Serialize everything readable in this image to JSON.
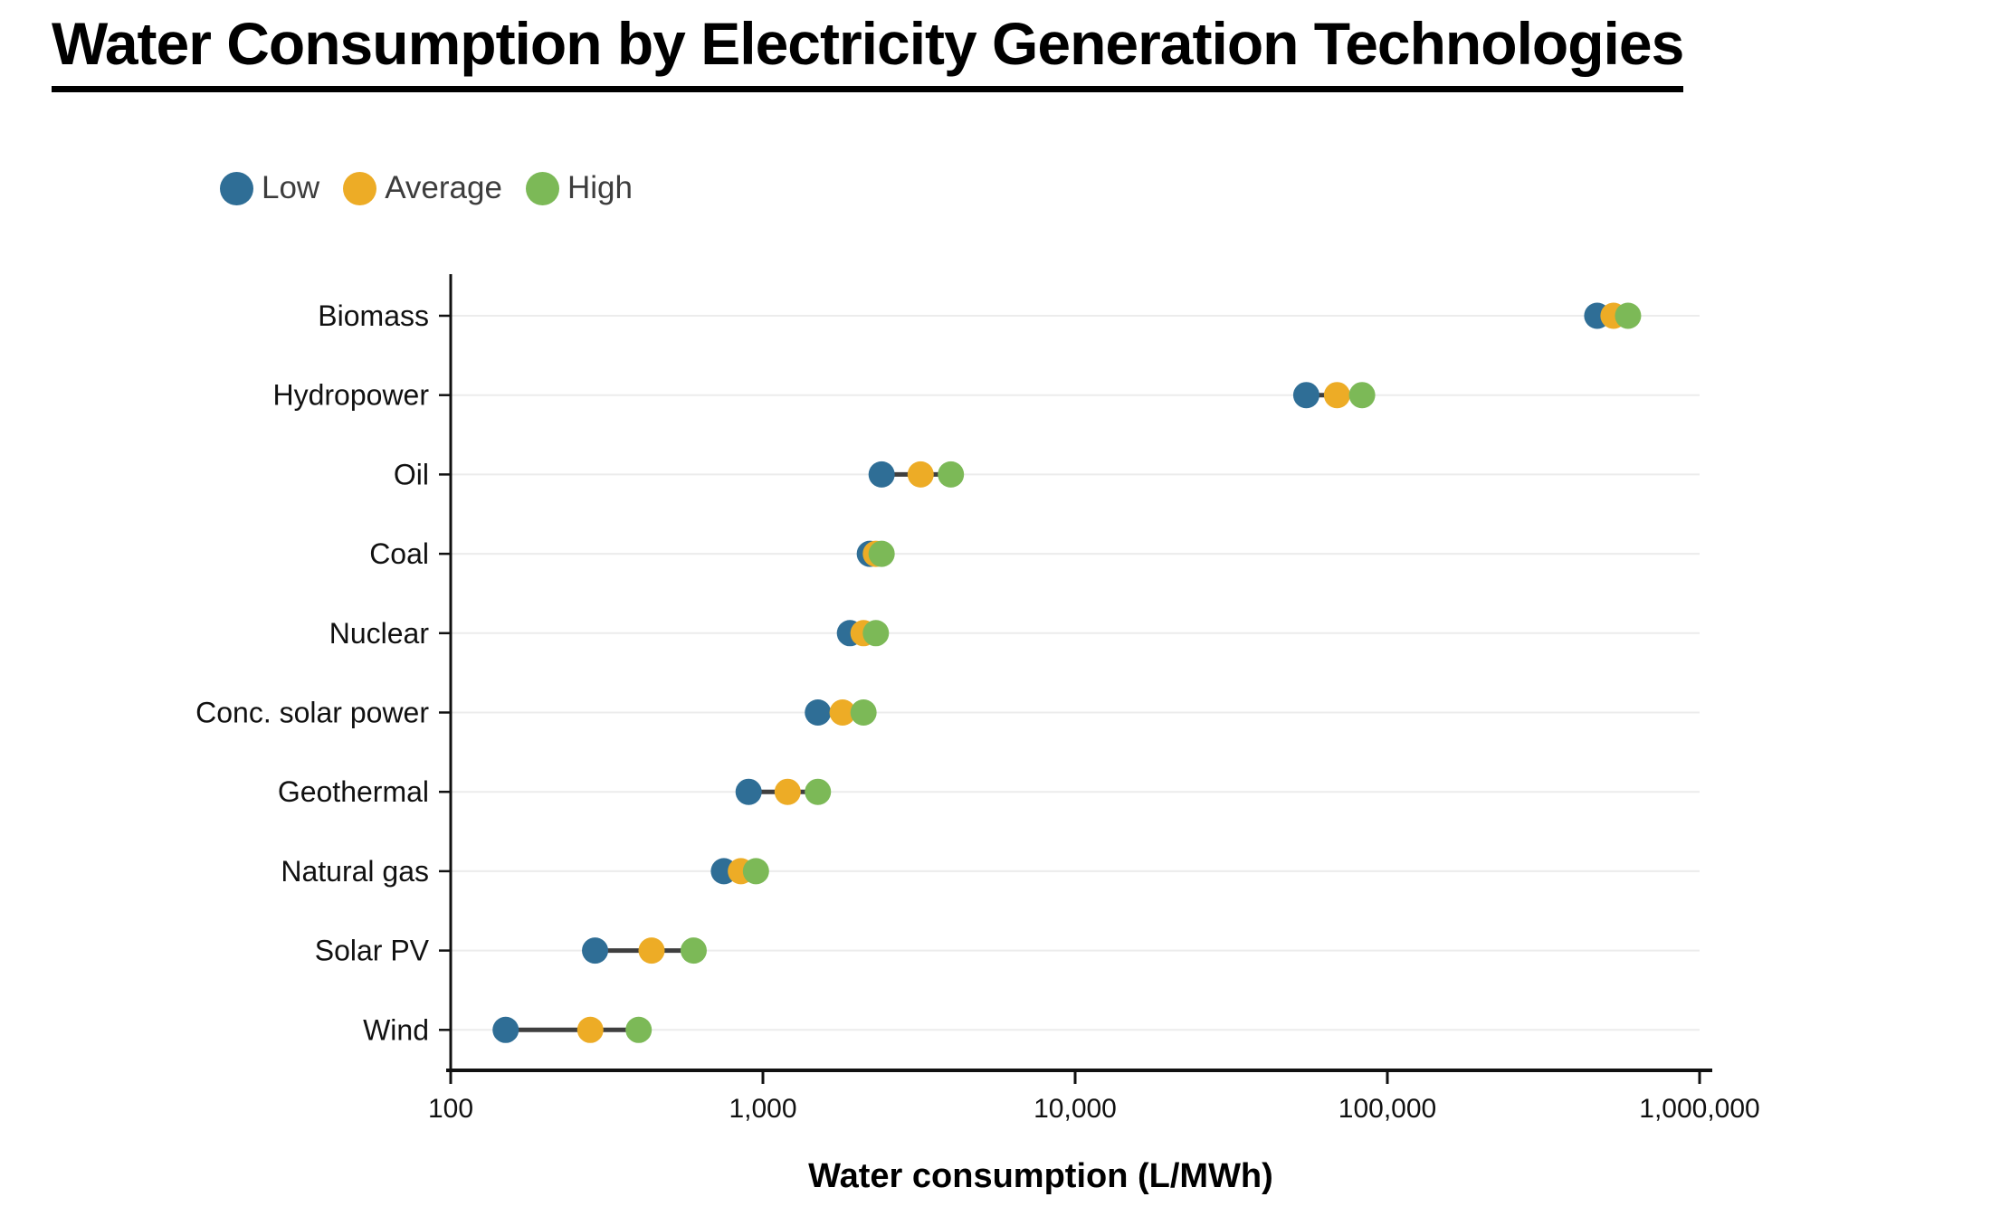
{
  "title": "Water Consumption by Electricity Generation Technologies",
  "legend": [
    {
      "label": "Low",
      "color": "#2F6E96"
    },
    {
      "label": "Average",
      "color": "#EDAC26"
    },
    {
      "label": "High",
      "color": "#7CB957"
    }
  ],
  "chart_data": {
    "type": "scatter",
    "subtype": "horizontal-dumbbell-dot-plot",
    "title": "Water Consumption by Electricity Generation Technologies",
    "xlabel": "Water consumption (L/MWh)",
    "ylabel": "",
    "x_scale": "log",
    "xlim": [
      100,
      1000000
    ],
    "x_ticks": [
      "100",
      "1,000",
      "10,000",
      "100,000",
      "1,000,000"
    ],
    "x_tick_values": [
      100,
      1000,
      10000,
      100000,
      1000000
    ],
    "grid": "horizontal-light-gridlines",
    "legend_position": "top-left",
    "categories": [
      "Biomass",
      "Hydropower",
      "Oil",
      "Coal",
      "Nuclear",
      "Conc. solar power",
      "Geothermal",
      "Natural gas",
      "Solar PV",
      "Wind"
    ],
    "series": [
      {
        "name": "Low",
        "color": "#2F6E96",
        "values": [
          470000,
          55000,
          2400,
          2200,
          1900,
          1500,
          900,
          750,
          290,
          150
        ]
      },
      {
        "name": "Average",
        "color": "#EDAC26",
        "values": [
          530000,
          69000,
          3200,
          2300,
          2100,
          1800,
          1200,
          850,
          440,
          280
        ]
      },
      {
        "name": "High",
        "color": "#7CB957",
        "values": [
          590000,
          83000,
          4000,
          2400,
          2300,
          2100,
          1500,
          950,
          600,
          400
        ]
      }
    ],
    "connector_color": "#3f3f3f",
    "axis_color": "#111111",
    "gridline_color": "#ececec"
  }
}
